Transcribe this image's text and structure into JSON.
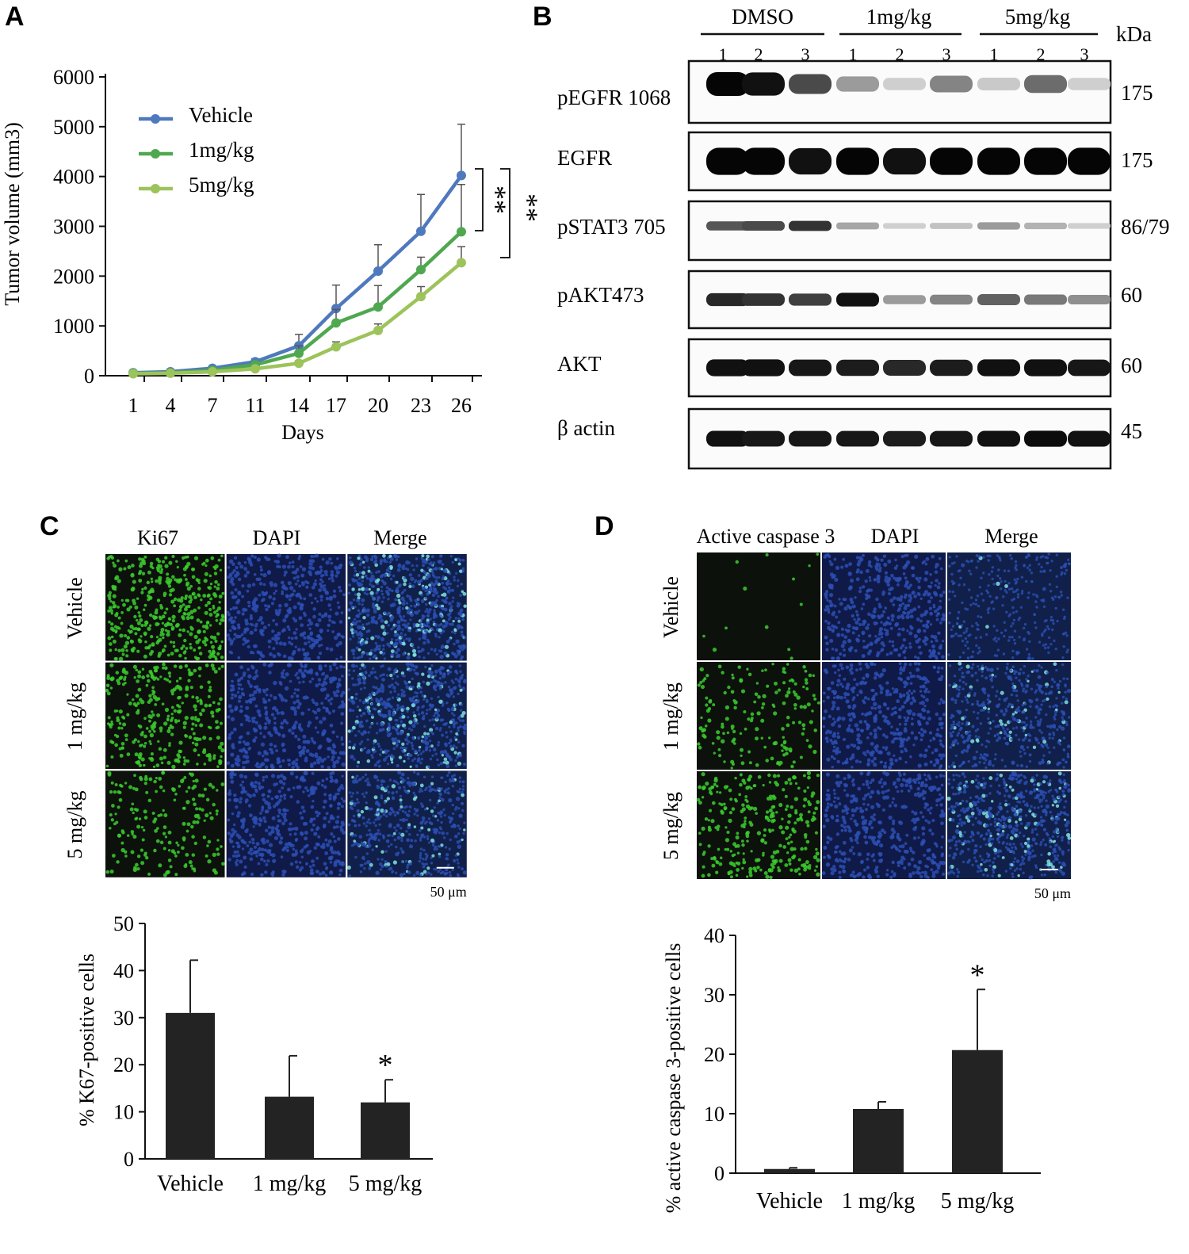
{
  "panels": {
    "a": "A",
    "b": "B",
    "c": "C",
    "d": "D"
  },
  "colors": {
    "vehicle": "#4f79bd",
    "dose1": "#4fa84f",
    "dose5": "#9dc35b",
    "bar": "#232323",
    "green_stain": "#3ccd2e",
    "blue_stain": "#2b4fb4",
    "cyan_stain": "#7fe0df"
  },
  "chart_data": [
    {
      "id": "tumor_volume",
      "type": "line",
      "title": "",
      "xlabel": "Days",
      "ylabel": "Tumor volume (mm3)",
      "x": [
        1,
        4,
        7,
        11,
        14,
        17,
        20,
        23,
        26
      ],
      "ylim": [
        0,
        6000
      ],
      "yticks": [
        0,
        1000,
        2000,
        3000,
        4000,
        5000,
        6000
      ],
      "series": [
        {
          "name": "Vehicle",
          "color": "#4f79bd",
          "values": [
            60,
            80,
            150,
            280,
            600,
            1350,
            2100,
            2900,
            4020
          ],
          "errors": [
            20,
            25,
            40,
            60,
            230,
            470,
            530,
            740,
            1030
          ]
        },
        {
          "name": "1mg/kg",
          "color": "#4fa84f",
          "values": [
            50,
            60,
            110,
            220,
            450,
            1060,
            1380,
            2130,
            2890
          ],
          "errors": [
            15,
            20,
            30,
            50,
            150,
            270,
            430,
            250,
            950
          ]
        },
        {
          "name": "5mg/kg",
          "color": "#9dc35b",
          "values": [
            40,
            50,
            80,
            140,
            250,
            580,
            910,
            1590,
            2270
          ],
          "errors": [
            10,
            15,
            20,
            30,
            50,
            100,
            130,
            200,
            320
          ]
        }
      ],
      "annotations": [
        "**",
        "**"
      ]
    },
    {
      "id": "ki67",
      "type": "bar",
      "ylabel": "% K67-positive cells",
      "categories": [
        "Vehicle",
        "1 mg/kg",
        "5 mg/kg"
      ],
      "values": [
        31,
        13.2,
        12
      ],
      "errors": [
        11.2,
        8.7,
        4.8
      ],
      "ylim": [
        0,
        50
      ],
      "yticks": [
        0,
        10,
        20,
        30,
        40,
        50
      ],
      "significance": [
        "",
        "",
        "*"
      ]
    },
    {
      "id": "caspase3",
      "type": "bar",
      "ylabel": "% active caspase 3-positive cells",
      "categories": [
        "Vehicle",
        "1 mg/kg",
        "5 mg/kg"
      ],
      "values": [
        0.7,
        10.8,
        20.7
      ],
      "errors": [
        0.2,
        1.2,
        10.2
      ],
      "ylim": [
        0,
        40
      ],
      "yticks": [
        0,
        10,
        20,
        30,
        40
      ],
      "significance": [
        "",
        "",
        "*"
      ]
    }
  ],
  "western": {
    "groups": [
      "DMSO",
      "1mg/kg",
      "5mg/kg"
    ],
    "lanes": [
      "1",
      "2",
      "3",
      "1",
      "2",
      "3",
      "1",
      "2",
      "3"
    ],
    "unit": "kDa",
    "rows": [
      {
        "label": "pEGFR 1068",
        "kda": "175",
        "intensity": [
          1.0,
          0.95,
          0.7,
          0.35,
          0.12,
          0.45,
          0.15,
          0.55,
          0.12
        ],
        "height": 0.7
      },
      {
        "label": "EGFR",
        "kda": "175",
        "intensity": [
          1.0,
          1.0,
          0.95,
          1.0,
          0.95,
          1.0,
          1.0,
          1.0,
          1.0
        ],
        "height": 0.85
      },
      {
        "label": "pSTAT3 705",
        "kda": "86/79",
        "intensity": [
          0.65,
          0.7,
          0.8,
          0.3,
          0.12,
          0.18,
          0.35,
          0.25,
          0.12
        ],
        "height": 0.35
      },
      {
        "label": "pAKT473",
        "kda": "60",
        "intensity": [
          0.85,
          0.8,
          0.75,
          0.95,
          0.35,
          0.45,
          0.6,
          0.5,
          0.4
        ],
        "height": 0.45
      },
      {
        "label": "AKT",
        "kda": "60",
        "intensity": [
          0.95,
          0.95,
          0.92,
          0.9,
          0.85,
          0.9,
          0.95,
          0.95,
          0.92
        ],
        "height": 0.55
      },
      {
        "label": "β actin",
        "kda": "45",
        "intensity": [
          0.95,
          0.92,
          0.92,
          0.92,
          0.9,
          0.92,
          0.95,
          0.97,
          0.95
        ],
        "height": 0.5
      }
    ]
  },
  "micro_c": {
    "columns": [
      "Ki67",
      "DAPI",
      "Merge"
    ],
    "rows": [
      "Vehicle",
      "1 mg/kg",
      "5 mg/kg"
    ],
    "scale": "50 μm",
    "density": [
      [
        1.0,
        1.0,
        1.0
      ],
      [
        0.75,
        1.0,
        0.75
      ],
      [
        0.45,
        1.0,
        0.45
      ]
    ]
  },
  "micro_d": {
    "columns": [
      "Active caspase 3",
      "DAPI",
      "Merge"
    ],
    "rows": [
      "Vehicle",
      "1 mg/kg",
      "5 mg/kg"
    ],
    "scale": "50 μm",
    "density": [
      [
        0.03,
        1.0,
        0.03
      ],
      [
        0.4,
        1.0,
        0.4
      ],
      [
        0.7,
        1.0,
        0.7
      ]
    ]
  }
}
